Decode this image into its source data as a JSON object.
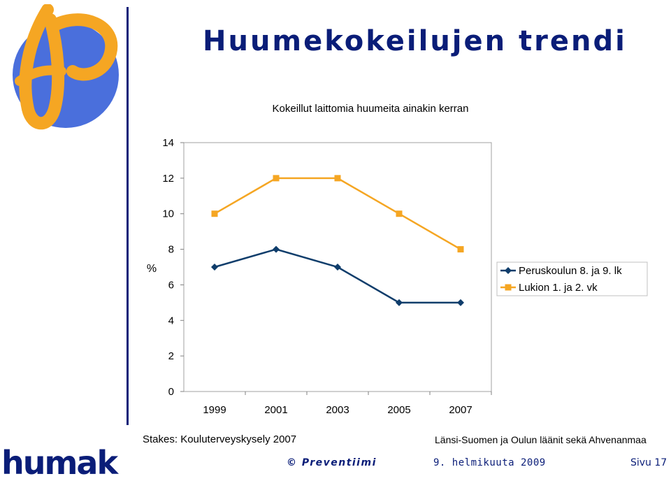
{
  "slide": {
    "title": "Huumekokeilujen trendi",
    "source_left": "Stakes: Kouluterveyskysely 2007",
    "source_right": "Länsi-Suomen ja Oulun läänit sekä Ahvenanmaa",
    "footer_left": "© Preventiimi",
    "footer_date": "9. helmikuuta 2009",
    "footer_page": "Sivu 17",
    "humak_logo_text": "humak"
  },
  "chart_data": {
    "type": "line",
    "title": "Kokeillut laittomia huumeita ainakin kerran",
    "ylabel": "%",
    "xlabel": "",
    "categories": [
      "1999",
      "2001",
      "2003",
      "2005",
      "2007"
    ],
    "ylim": [
      0,
      14
    ],
    "yticks": [
      0,
      2,
      4,
      6,
      8,
      10,
      12,
      14
    ],
    "grid": false,
    "legend_position": "right",
    "series": [
      {
        "name": "Peruskoulun 8. ja 9. lk",
        "values": [
          7,
          8,
          7,
          5,
          5
        ],
        "color": "#0f3d6b",
        "marker": "diamond"
      },
      {
        "name": "Lukion 1. ja 2. vk",
        "values": [
          10,
          12,
          12,
          10,
          8
        ],
        "color": "#f5a623",
        "marker": "square"
      }
    ]
  },
  "colors": {
    "brand_navy": "#0a1d78",
    "logo_blue": "#4a6fdc",
    "logo_orange": "#f5a623"
  }
}
